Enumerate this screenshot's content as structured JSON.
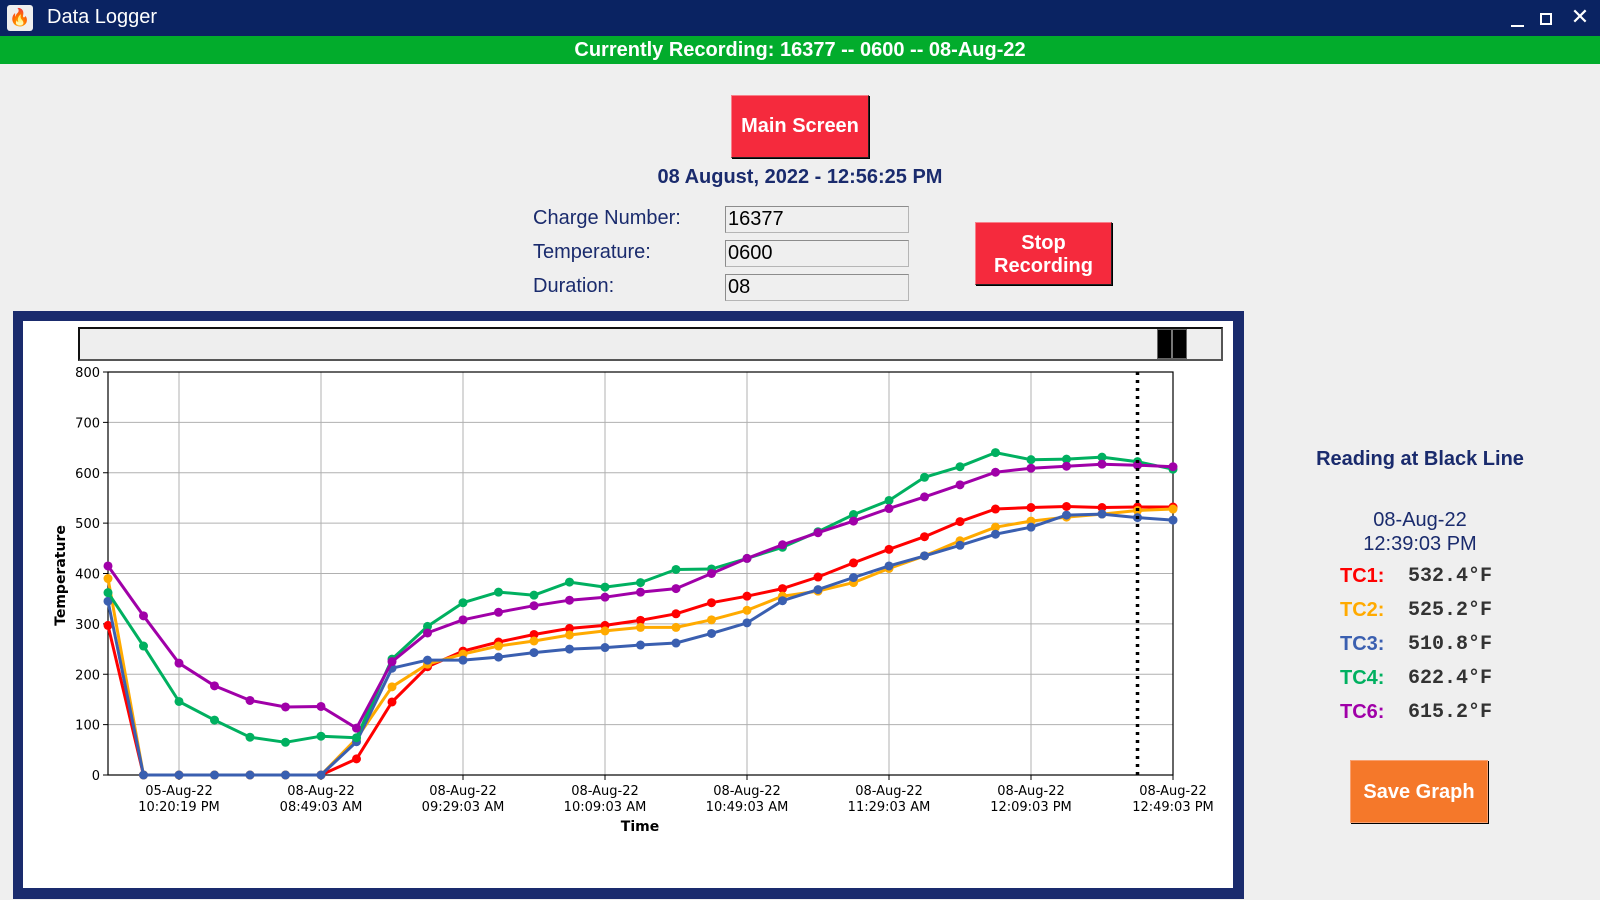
{
  "window": {
    "title": "Data Logger",
    "app_icon": "flame-icon",
    "controls": {
      "minimize": "minimize-icon",
      "maximize": "maximize-icon",
      "close": "close-icon"
    }
  },
  "status_bar": {
    "text": "Currently Recording: 16377 -- 0600 -- 08-Aug-22",
    "color": "#02ac2c"
  },
  "header": {
    "main_screen_label": "Main Screen",
    "datetime": "08 August, 2022 - 12:56:25 PM",
    "stop_recording_label_line1": "Stop",
    "stop_recording_label_line2": "Recording"
  },
  "form": {
    "fields": [
      {
        "label": "Charge Number:",
        "value": "16377"
      },
      {
        "label": "Temperature:",
        "value": "0600"
      },
      {
        "label": "Duration:",
        "value": "08"
      }
    ]
  },
  "side_panel": {
    "title": "Reading at Black Line",
    "date": "08-Aug-22",
    "time": "12:39:03 PM",
    "readings": [
      {
        "label": "TC1:",
        "value": "532.4°F",
        "color": "#ff0000"
      },
      {
        "label": "TC2:",
        "value": "525.2°F",
        "color": "#ffaa00"
      },
      {
        "label": "TC3:",
        "value": "510.8°F",
        "color": "#3a5fb0"
      },
      {
        "label": "TC4:",
        "value": "622.4°F",
        "color": "#00b060"
      },
      {
        "label": "TC6:",
        "value": "615.2°F",
        "color": "#a000a8"
      }
    ],
    "save_graph_label": "Save Graph"
  },
  "chart_data": {
    "type": "line",
    "title": "",
    "xlabel": "Time",
    "ylabel": "Temperature",
    "ylim": [
      0,
      800
    ],
    "yticks": [
      0,
      100,
      200,
      300,
      400,
      500,
      600,
      700,
      800
    ],
    "grid": true,
    "legend": "none",
    "xtick_labels": [
      [
        "05-Aug-22",
        "10:20:19 PM"
      ],
      [
        "08-Aug-22",
        "08:49:03 AM"
      ],
      [
        "08-Aug-22",
        "09:29:03 AM"
      ],
      [
        "08-Aug-22",
        "10:09:03 AM"
      ],
      [
        "08-Aug-22",
        "10:49:03 AM"
      ],
      [
        "08-Aug-22",
        "11:29:03 AM"
      ],
      [
        "08-Aug-22",
        "12:09:03 PM"
      ],
      [
        "08-Aug-22",
        "12:49:03 PM"
      ]
    ],
    "xtick_indices": [
      2,
      6,
      10,
      14,
      18,
      22,
      26,
      30
    ],
    "black_line_index": 29,
    "point_count": 31,
    "series": [
      {
        "name": "TC1",
        "color": "#ff0000",
        "values": [
          297,
          0,
          0,
          0,
          0,
          0,
          0,
          32,
          145,
          215,
          246,
          264,
          279,
          291,
          297,
          307,
          320,
          342,
          355,
          370,
          393,
          421,
          448,
          473,
          503,
          528,
          531,
          533,
          531,
          532,
          532
        ]
      },
      {
        "name": "TC2",
        "color": "#ffaa00",
        "values": [
          390,
          0,
          0,
          0,
          0,
          0,
          0,
          72,
          175,
          220,
          240,
          256,
          266,
          278,
          286,
          293,
          293,
          308,
          327,
          355,
          365,
          382,
          410,
          435,
          465,
          492,
          504,
          512,
          518,
          525,
          528
        ]
      },
      {
        "name": "TC3",
        "color": "#3a5fb0",
        "values": [
          345,
          0,
          0,
          0,
          0,
          0,
          0,
          66,
          212,
          228,
          228,
          234,
          243,
          250,
          253,
          258,
          262,
          281,
          302,
          346,
          368,
          392,
          415,
          435,
          456,
          478,
          492,
          516,
          518,
          511,
          506
        ]
      },
      {
        "name": "TC4",
        "color": "#00b060",
        "values": [
          362,
          256,
          146,
          109,
          75,
          65,
          77,
          74,
          230,
          295,
          342,
          363,
          357,
          383,
          373,
          382,
          408,
          409,
          430,
          452,
          483,
          517,
          545,
          591,
          612,
          640,
          626,
          627,
          631,
          622,
          607
        ]
      },
      {
        "name": "TC6",
        "color": "#a000a8",
        "values": [
          415,
          316,
          222,
          177,
          148,
          135,
          136,
          93,
          225,
          282,
          308,
          323,
          336,
          347,
          353,
          363,
          370,
          400,
          430,
          457,
          481,
          504,
          529,
          552,
          576,
          601,
          609,
          613,
          617,
          615,
          612
        ]
      }
    ]
  }
}
